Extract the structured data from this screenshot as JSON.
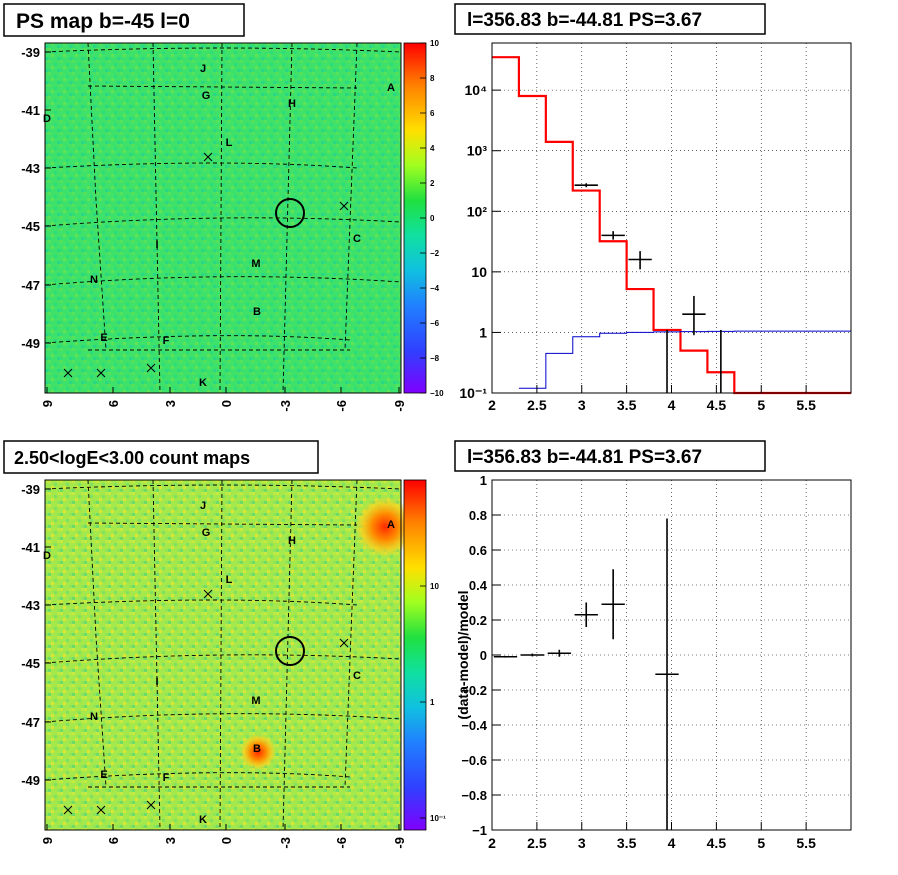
{
  "colors": {
    "map_green": "#33e070",
    "map_yellow_green": "#9ee651",
    "model_red": "#ff0000",
    "background_blue": "#0000cc",
    "data_black": "#000000",
    "grid_dotted": "#000000"
  },
  "panels": {
    "top_left": {
      "title": "PS map b=-45 l=0",
      "y_ticks": [
        "-39",
        "-41",
        "-43",
        "-45",
        "-47",
        "-49"
      ],
      "x_ticks": [
        "9",
        "6",
        "3",
        "0",
        "-3",
        "-6",
        "-9"
      ],
      "colorbar_ticks": [
        "10",
        "8",
        "6",
        "4",
        "2",
        "0",
        "−2",
        "−4",
        "−6",
        "−8",
        "−10"
      ],
      "colorbar_range": [
        -10,
        10
      ],
      "source_labels": [
        "J",
        "A",
        "G",
        "H",
        "D",
        "L",
        "C",
        "I",
        "M",
        "N",
        "B",
        "E",
        "F",
        "K"
      ]
    },
    "bottom_left": {
      "title": "2.50<logE<3.00 count maps",
      "y_ticks": [
        "-39",
        "-41",
        "-43",
        "-45",
        "-47",
        "-49"
      ],
      "x_ticks": [
        "9",
        "6",
        "3",
        "0",
        "-3",
        "-6",
        "-9"
      ],
      "colorbar_ticks": [
        "10",
        "1",
        "10⁻¹"
      ],
      "colorbar_scale": "log",
      "source_labels": [
        "J",
        "A",
        "G",
        "H",
        "D",
        "L",
        "C",
        "I",
        "M",
        "N",
        "B",
        "E",
        "F",
        "K"
      ]
    }
  },
  "chart_data": [
    {
      "type": "line",
      "panel": "top_right",
      "title": "l=356.83 b=-44.81 PS=3.67",
      "xlabel": "",
      "ylabel": "",
      "xlim": [
        2,
        6
      ],
      "ylim": [
        0.1,
        60000
      ],
      "y_scale": "log",
      "grid": true,
      "x_ticks": [
        "2",
        "2.5",
        "3",
        "3.5",
        "4",
        "4.5",
        "5",
        "5.5"
      ],
      "y_ticks": [
        "10⁻¹",
        "1",
        "10",
        "10²",
        "10³",
        "10⁴"
      ],
      "series": [
        {
          "color": "#ff0000",
          "style": "step",
          "bin_edges": [
            2.0,
            2.3,
            2.6,
            2.9,
            3.2,
            3.5,
            3.8,
            4.1,
            4.4,
            4.7,
            5.0,
            6.0
          ],
          "values": [
            35000,
            8000,
            1400,
            220,
            32,
            5.2,
            1.1,
            0.5,
            0.22,
            0.1,
            0.1
          ]
        },
        {
          "color": "#0000cc",
          "style": "step",
          "bin_edges": [
            2.3,
            2.6,
            2.9,
            3.2,
            3.5,
            3.8,
            4.1,
            4.4,
            4.7,
            5.0,
            6.0
          ],
          "values": [
            0.12,
            0.45,
            0.85,
            0.97,
            1.0,
            1.02,
            1.03,
            1.04,
            1.05,
            1.05
          ]
        },
        {
          "color": "#000000",
          "style": "errorbar",
          "points": [
            {
              "x": 3.05,
              "y": 270,
              "xerr": 0.13,
              "ylo": 250,
              "yhi": 290
            },
            {
              "x": 3.35,
              "y": 40,
              "xerr": 0.13,
              "ylo": 34,
              "yhi": 47
            },
            {
              "x": 3.65,
              "y": 16,
              "xerr": 0.13,
              "ylo": 11,
              "yhi": 22
            },
            {
              "x": 3.95,
              "y": 0.1,
              "xerr": 0.0,
              "ylo": 0.1,
              "yhi": 1.1
            },
            {
              "x": 4.25,
              "y": 2.0,
              "xerr": 0.13,
              "ylo": 0.9,
              "yhi": 4.0
            },
            {
              "x": 4.55,
              "y": 0.1,
              "xerr": 0.0,
              "ylo": 0.1,
              "yhi": 1.1
            }
          ]
        }
      ]
    },
    {
      "type": "scatter",
      "panel": "bottom_right",
      "title": "l=356.83 b=-44.81 PS=3.67",
      "xlabel": "",
      "ylabel": "(data-model)/model",
      "xlim": [
        2,
        6
      ],
      "ylim": [
        -1,
        1
      ],
      "grid": true,
      "x_ticks": [
        "2",
        "2.5",
        "3",
        "3.5",
        "4",
        "4.5",
        "5",
        "5.5"
      ],
      "y_ticks": [
        "1",
        "0.8",
        "0.6",
        "0.4",
        "0.2",
        "0",
        "−0.2",
        "−0.4",
        "−0.6",
        "−0.8",
        "−1"
      ],
      "series": [
        {
          "color": "#000000",
          "style": "errorbar",
          "points": [
            {
              "x": 2.15,
              "y": -0.01,
              "xerr": 0.13,
              "ylo": -0.015,
              "yhi": -0.005
            },
            {
              "x": 2.45,
              "y": 0.0,
              "xerr": 0.13,
              "ylo": -0.008,
              "yhi": 0.008
            },
            {
              "x": 2.75,
              "y": 0.01,
              "xerr": 0.13,
              "ylo": -0.01,
              "yhi": 0.03
            },
            {
              "x": 3.05,
              "y": 0.23,
              "xerr": 0.13,
              "ylo": 0.16,
              "yhi": 0.3
            },
            {
              "x": 3.35,
              "y": 0.29,
              "xerr": 0.13,
              "ylo": 0.09,
              "yhi": 0.49
            },
            {
              "x": 3.95,
              "y": -0.11,
              "xerr": 0.13,
              "ylo": -1.0,
              "yhi": 0.78
            }
          ]
        }
      ]
    }
  ]
}
